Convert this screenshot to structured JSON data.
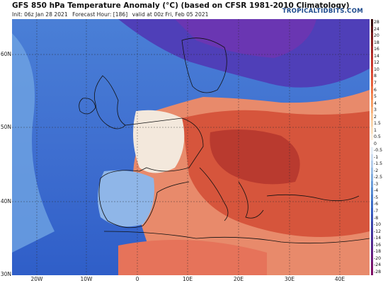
{
  "header": {
    "title": "GFS 850 hPa Temperature Anomaly (°C) (based on CFSR 1981-2010 Climatology)",
    "init": "Init: 06z Jan 28 2021",
    "forecast_hour": "Forecast Hour: [186]",
    "valid": "valid at 00z Fri, Feb 05 2021",
    "brand": "TROPICALTIDBITS.COM"
  },
  "axes": {
    "lat_labels": [
      "60N",
      "50N",
      "40N",
      "30N"
    ],
    "lon_labels": [
      "20W",
      "10W",
      "0",
      "10E",
      "20E",
      "30E",
      "40E"
    ]
  },
  "colorbar": {
    "labels": [
      "28",
      "24",
      "20",
      "18",
      "16",
      "14",
      "12",
      "10",
      "8",
      "7",
      "6",
      "5",
      "4",
      "3",
      "2",
      "1.5",
      "1",
      "0.5",
      "0",
      "-0.5",
      "-1",
      "-1.5",
      "-2",
      "-2.5",
      "-3",
      "-4",
      "-5",
      "-6",
      "-7",
      "-8",
      "-10",
      "-12",
      "-14",
      "-16",
      "-18",
      "-20",
      "-24",
      "-28"
    ],
    "colors": [
      "#3a0f0f",
      "#5a1515",
      "#7a1c1c",
      "#8e2222",
      "#a42727",
      "#b82e2a",
      "#c8372e",
      "#d64331",
      "#e04e36",
      "#e8613e",
      "#ef7547",
      "#f38a55",
      "#f6a068",
      "#f8b47f",
      "#f9c797",
      "#fad6ae",
      "#fbe3c4",
      "#fdefdc",
      "#ffffff",
      "#e6f0fa",
      "#cfe0f4",
      "#b6d0ee",
      "#9dc0e8",
      "#84b0e2",
      "#6ea0dc",
      "#5a8fd5",
      "#4a7fcf",
      "#3f6fc9",
      "#3a60c2",
      "#3a52b8",
      "#3c45ad",
      "#4138a2",
      "#4a2f99",
      "#55288f",
      "#602285",
      "#6b1c7b",
      "#761670",
      "#801066"
    ]
  },
  "legend": {
    "warm_hi": "#d6553c",
    "warm": "#e88a6b",
    "cool": "#6b9bde",
    "cold": "#3a54c4",
    "neutral": "#f3e8dc"
  }
}
